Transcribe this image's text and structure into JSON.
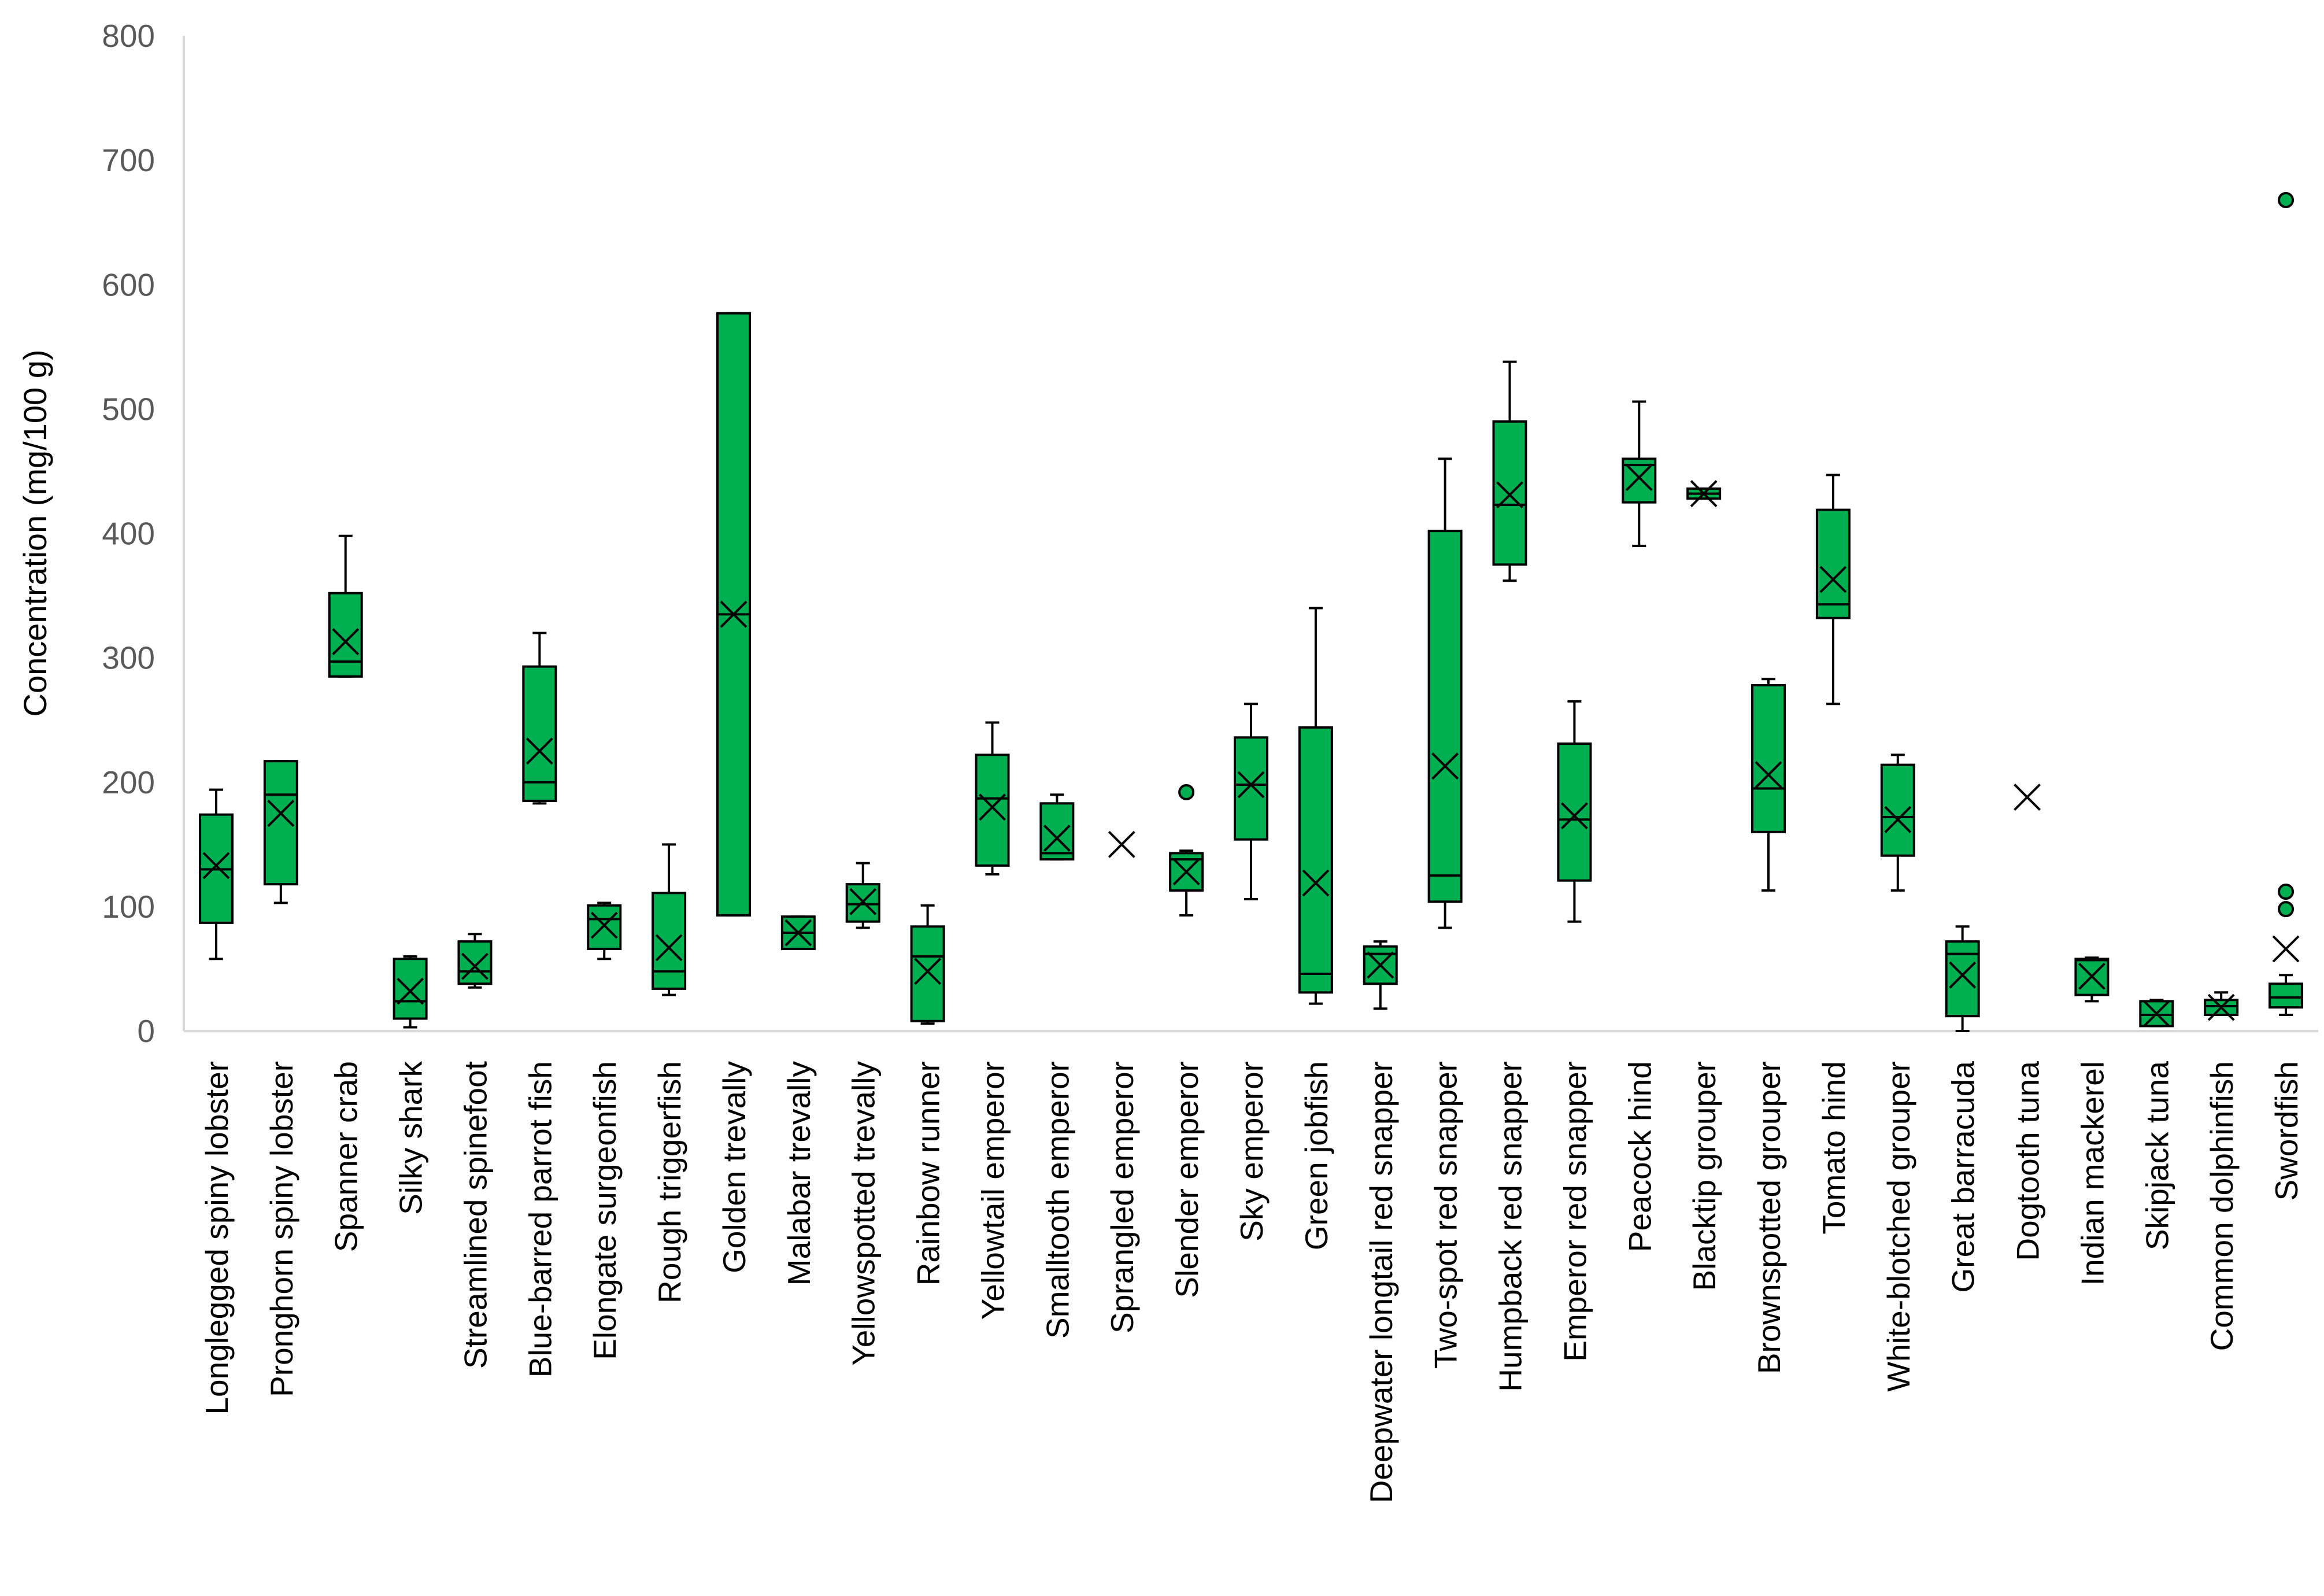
{
  "chart_data": {
    "type": "boxplot",
    "ylabel": "Concentration (mg/100 g)",
    "ylim": [
      0,
      800
    ],
    "yticks": [
      "0",
      "100",
      "200",
      "300",
      "400",
      "500",
      "600",
      "700",
      "800"
    ],
    "colors": {
      "box": "#00b050",
      "stroke": "#000000",
      "axis": "#d9d9d9"
    },
    "categories": [
      "Longlegged spiny lobster",
      "Pronghorn spiny lobster",
      "Spanner crab",
      "Silky shark",
      "Streamlined spinefoot",
      "Blue-barred parrot fish",
      "Elongate surgeonfish",
      "Rough triggerfish",
      "Golden trevally",
      "Malabar trevally",
      "Yellowspotted trevally",
      "Rainbow runner",
      "Yellowtail emperor",
      "Smalltooth emperor",
      "Sprangled emperor",
      "Slender emperor",
      "Sky emperor",
      "Green jobfish",
      "Deepwater longtail red snapper",
      "Two-spot red snapper",
      "Humpback red snapper",
      "Emperor red snapper",
      "Peacock hind",
      "Blacktip grouper",
      "Brownspotted grouper",
      "Tomato hind",
      "White-blotched grouper",
      "Great barracuda",
      "Dogtooth tuna",
      "Indian mackerel",
      "Skipjack tuna",
      "Common dolphinfish",
      "Swordfish"
    ],
    "boxes": [
      {
        "min": 58,
        "q1": 87,
        "median": 130,
        "q3": 174,
        "max": 194,
        "mean": 133,
        "outliers": []
      },
      {
        "min": 103,
        "q1": 118,
        "median": 190,
        "q3": 217,
        "max": 217,
        "mean": 175,
        "outliers": []
      },
      {
        "min": 285,
        "q1": 285,
        "median": 297,
        "q3": 352,
        "max": 398,
        "mean": 313,
        "outliers": []
      },
      {
        "min": 3,
        "q1": 10,
        "median": 24,
        "q3": 58,
        "max": 60,
        "mean": 32,
        "outliers": []
      },
      {
        "min": 35,
        "q1": 38,
        "median": 48,
        "q3": 72,
        "max": 78,
        "mean": 52,
        "outliers": []
      },
      {
        "min": 183,
        "q1": 185,
        "median": 200,
        "q3": 293,
        "max": 320,
        "mean": 225,
        "outliers": []
      },
      {
        "min": 58,
        "q1": 66,
        "median": 90,
        "q3": 101,
        "max": 103,
        "mean": 85,
        "outliers": []
      },
      {
        "min": 29,
        "q1": 34,
        "median": 48,
        "q3": 111,
        "max": 150,
        "mean": 67,
        "outliers": []
      },
      {
        "min": 93,
        "q1": 93,
        "median": 335,
        "q3": 577,
        "max": 577,
        "mean": 335,
        "outliers": []
      },
      {
        "min": 66,
        "q1": 66,
        "median": 79,
        "q3": 92,
        "max": 92,
        "mean": 79,
        "outliers": []
      },
      {
        "min": 83,
        "q1": 88,
        "median": 102,
        "q3": 118,
        "max": 135,
        "mean": 104,
        "outliers": []
      },
      {
        "min": 6,
        "q1": 8,
        "median": 60,
        "q3": 84,
        "max": 101,
        "mean": 48,
        "outliers": []
      },
      {
        "min": 126,
        "q1": 133,
        "median": 187,
        "q3": 222,
        "max": 248,
        "mean": 180,
        "outliers": []
      },
      {
        "min": 138,
        "q1": 138,
        "median": 143,
        "q3": 183,
        "max": 190,
        "mean": 155,
        "outliers": []
      },
      {
        "min": 150,
        "q1": 150,
        "median": 150,
        "q3": 150,
        "max": 150,
        "mean": 150,
        "outliers": []
      },
      {
        "min": 93,
        "q1": 113,
        "median": 138,
        "q3": 143,
        "max": 145,
        "mean": 128,
        "outliers": [
          192
        ]
      },
      {
        "min": 106,
        "q1": 154,
        "median": 198,
        "q3": 236,
        "max": 263,
        "mean": 198,
        "outliers": []
      },
      {
        "min": 22,
        "q1": 31,
        "median": 46,
        "q3": 244,
        "max": 340,
        "mean": 119,
        "outliers": []
      },
      {
        "min": 18,
        "q1": 38,
        "median": 62,
        "q3": 68,
        "max": 72,
        "mean": 53,
        "outliers": []
      },
      {
        "min": 83,
        "q1": 104,
        "median": 125,
        "q3": 402,
        "max": 460,
        "mean": 213,
        "outliers": []
      },
      {
        "min": 362,
        "q1": 375,
        "median": 423,
        "q3": 490,
        "max": 538,
        "mean": 431,
        "outliers": []
      },
      {
        "min": 88,
        "q1": 121,
        "median": 170,
        "q3": 231,
        "max": 265,
        "mean": 173,
        "outliers": []
      },
      {
        "min": 390,
        "q1": 425,
        "median": 455,
        "q3": 460,
        "max": 506,
        "mean": 445,
        "outliers": []
      },
      {
        "min": 428,
        "q1": 428,
        "median": 432,
        "q3": 436,
        "max": 436,
        "mean": 432,
        "outliers": []
      },
      {
        "min": 113,
        "q1": 160,
        "median": 195,
        "q3": 278,
        "max": 283,
        "mean": 206,
        "outliers": []
      },
      {
        "min": 263,
        "q1": 332,
        "median": 343,
        "q3": 419,
        "max": 447,
        "mean": 363,
        "outliers": []
      },
      {
        "min": 113,
        "q1": 141,
        "median": 172,
        "q3": 214,
        "max": 222,
        "mean": 170,
        "outliers": []
      },
      {
        "min": 0,
        "q1": 12,
        "median": 62,
        "q3": 72,
        "max": 84,
        "mean": 45,
        "outliers": []
      },
      {
        "min": 188,
        "q1": 188,
        "median": 188,
        "q3": 188,
        "max": 188,
        "mean": 188,
        "outliers": []
      },
      {
        "min": 24,
        "q1": 29,
        "median": 57,
        "q3": 58,
        "max": 59,
        "mean": 44,
        "outliers": []
      },
      {
        "min": 4,
        "q1": 4,
        "median": 13,
        "q3": 24,
        "max": 25,
        "mean": 14,
        "outliers": []
      },
      {
        "min": 13,
        "q1": 13,
        "median": 20,
        "q3": 25,
        "max": 31,
        "mean": 19,
        "outliers": []
      },
      {
        "min": 13,
        "q1": 19,
        "median": 27,
        "q3": 38,
        "max": 45,
        "mean": 66,
        "outliers": [
          98,
          112,
          668
        ]
      }
    ]
  }
}
